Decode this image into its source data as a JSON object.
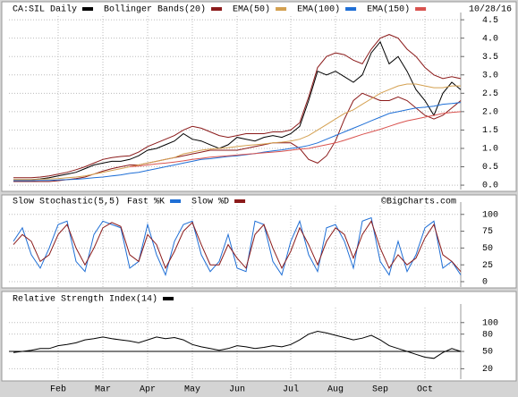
{
  "chart_data": [
    {
      "type": "line",
      "date": "10/28/16",
      "ylim": [
        -0.12,
        4.6
      ],
      "yticks": [
        {
          "value": 0,
          "label": "0.0"
        },
        0.5,
        {
          "value": 1,
          "label": "1.0"
        },
        1.5,
        {
          "value": 2,
          "label": "2.0"
        },
        2.5,
        {
          "value": 3,
          "label": "3.0"
        },
        3.5,
        {
          "value": 4,
          "label": "4.0"
        },
        4.5
      ],
      "grid": true,
      "series": [
        {
          "name": "CA:SIL Daily",
          "color": "#000000",
          "values": [
            0.15,
            0.15,
            0.15,
            0.17,
            0.2,
            0.25,
            0.3,
            0.35,
            0.45,
            0.55,
            0.6,
            0.65,
            0.65,
            0.7,
            0.8,
            0.95,
            1.0,
            1.1,
            1.2,
            1.4,
            1.25,
            1.2,
            1.1,
            1.0,
            1.1,
            1.3,
            1.25,
            1.2,
            1.3,
            1.35,
            1.3,
            1.4,
            1.6,
            2.3,
            3.1,
            3.0,
            3.1,
            2.95,
            2.8,
            3.0,
            3.6,
            3.9,
            3.3,
            3.5,
            3.1,
            2.6,
            2.3,
            1.9,
            2.5,
            2.8,
            2.6
          ]
        },
        {
          "name": "Bollinger Bands(20)",
          "color": "#8b1a1a",
          "values": [
            0.2,
            0.2,
            0.2,
            0.22,
            0.25,
            0.3,
            0.35,
            0.42,
            0.5,
            0.6,
            0.7,
            0.75,
            0.78,
            0.8,
            0.9,
            1.05,
            1.15,
            1.25,
            1.35,
            1.5,
            1.6,
            1.55,
            1.45,
            1.35,
            1.3,
            1.35,
            1.4,
            1.4,
            1.4,
            1.45,
            1.45,
            1.5,
            1.7,
            2.4,
            3.2,
            3.5,
            3.6,
            3.55,
            3.4,
            3.3,
            3.7,
            4.0,
            4.1,
            4.0,
            3.7,
            3.5,
            3.2,
            3.0,
            2.9,
            2.95,
            2.9
          ],
          "lower": [
            0.1,
            0.1,
            0.1,
            0.1,
            0.1,
            0.12,
            0.15,
            0.18,
            0.22,
            0.3,
            0.38,
            0.45,
            0.5,
            0.55,
            0.55,
            0.6,
            0.65,
            0.7,
            0.75,
            0.8,
            0.85,
            0.9,
            0.95,
            0.95,
            0.95,
            0.95,
            1.0,
            1.05,
            1.1,
            1.15,
            1.15,
            1.15,
            1.0,
            0.7,
            0.6,
            0.8,
            1.2,
            1.8,
            2.3,
            2.5,
            2.4,
            2.3,
            2.3,
            2.4,
            2.3,
            2.1,
            1.9,
            1.8,
            1.9,
            2.1,
            2.3
          ]
        },
        {
          "name": "EMA(50)",
          "color": "#d4a050",
          "values": [
            0.15,
            0.15,
            0.15,
            0.16,
            0.17,
            0.18,
            0.2,
            0.22,
            0.25,
            0.3,
            0.35,
            0.4,
            0.45,
            0.5,
            0.55,
            0.6,
            0.65,
            0.7,
            0.75,
            0.85,
            0.9,
            0.95,
            0.98,
            1.0,
            1.02,
            1.05,
            1.08,
            1.1,
            1.12,
            1.15,
            1.17,
            1.2,
            1.25,
            1.35,
            1.5,
            1.65,
            1.8,
            1.95,
            2.05,
            2.2,
            2.35,
            2.5,
            2.6,
            2.7,
            2.75,
            2.75,
            2.7,
            2.65,
            2.65,
            2.7,
            2.7
          ]
        },
        {
          "name": "EMA(100)",
          "color": "#1f6fd6",
          "values": [
            0.12,
            0.12,
            0.12,
            0.13,
            0.13,
            0.14,
            0.15,
            0.16,
            0.18,
            0.2,
            0.22,
            0.25,
            0.28,
            0.32,
            0.35,
            0.4,
            0.45,
            0.5,
            0.55,
            0.6,
            0.65,
            0.7,
            0.72,
            0.75,
            0.78,
            0.8,
            0.83,
            0.86,
            0.9,
            0.93,
            0.96,
            1.0,
            1.03,
            1.08,
            1.15,
            1.25,
            1.35,
            1.45,
            1.55,
            1.65,
            1.75,
            1.85,
            1.95,
            2.0,
            2.05,
            2.1,
            2.12,
            2.15,
            2.2,
            2.22,
            2.25
          ]
        },
        {
          "name": "EMA(150)",
          "color": "#d9534f",
          "values": [
            null,
            null,
            null,
            null,
            null,
            null,
            null,
            null,
            null,
            null,
            null,
            null,
            null,
            0.5,
            0.52,
            0.55,
            0.58,
            0.6,
            0.63,
            0.66,
            0.7,
            0.73,
            0.76,
            0.78,
            0.8,
            0.82,
            0.84,
            0.86,
            0.88,
            0.9,
            0.92,
            0.95,
            0.98,
            1.0,
            1.05,
            1.1,
            1.15,
            1.22,
            1.3,
            1.38,
            1.45,
            1.52,
            1.6,
            1.68,
            1.75,
            1.8,
            1.85,
            1.9,
            1.95,
            1.98,
            2.0
          ]
        }
      ]
    },
    {
      "type": "line",
      "title": "Slow Stochastic(5,5)",
      "credit": "©BigCharts.com",
      "ylim": [
        -8,
        113
      ],
      "yticks": [
        0,
        25,
        50,
        75,
        100
      ],
      "grid": true,
      "series": [
        {
          "name": "Fast %K",
          "color": "#1f6fd6",
          "values": [
            60,
            80,
            40,
            20,
            50,
            85,
            90,
            30,
            15,
            70,
            90,
            85,
            80,
            20,
            30,
            85,
            40,
            10,
            60,
            85,
            90,
            40,
            15,
            30,
            70,
            20,
            15,
            90,
            85,
            30,
            10,
            60,
            90,
            40,
            15,
            80,
            85,
            60,
            20,
            90,
            95,
            30,
            10,
            60,
            15,
            40,
            80,
            90,
            20,
            30,
            10
          ]
        },
        {
          "name": "Slow %D",
          "color": "#8b1a1a",
          "values": [
            55,
            70,
            60,
            30,
            40,
            70,
            85,
            50,
            25,
            50,
            80,
            88,
            82,
            40,
            30,
            70,
            55,
            20,
            45,
            75,
            88,
            55,
            25,
            25,
            55,
            35,
            20,
            70,
            85,
            50,
            20,
            45,
            80,
            55,
            25,
            60,
            80,
            70,
            35,
            70,
            90,
            50,
            20,
            40,
            25,
            35,
            65,
            85,
            40,
            30,
            15
          ]
        }
      ]
    },
    {
      "type": "line",
      "reference": 50,
      "ylim": [
        2,
        126
      ],
      "yticks": [
        20,
        50,
        80,
        100
      ],
      "grid": true,
      "categories": [
        null,
        null,
        null,
        null,
        null,
        "Feb",
        null,
        null,
        null,
        null,
        "Mar",
        null,
        null,
        null,
        null,
        "Apr",
        null,
        null,
        null,
        null,
        "May",
        null,
        null,
        null,
        null,
        "Jun",
        null,
        null,
        null,
        null,
        null,
        "Jul",
        null,
        null,
        null,
        null,
        "Aug",
        null,
        null,
        null,
        null,
        "Sep",
        null,
        null,
        null,
        null,
        "Oct",
        null,
        null,
        null,
        null
      ],
      "series": [
        {
          "name": "Relative Strength Index(14)",
          "color": "#000000",
          "values": [
            48,
            50,
            52,
            55,
            55,
            60,
            62,
            65,
            70,
            72,
            75,
            72,
            70,
            68,
            65,
            70,
            75,
            72,
            74,
            70,
            62,
            58,
            55,
            52,
            55,
            60,
            58,
            55,
            57,
            60,
            58,
            62,
            70,
            80,
            85,
            82,
            78,
            74,
            70,
            73,
            78,
            70,
            60,
            55,
            50,
            45,
            40,
            38,
            48,
            55,
            50
          ]
        }
      ]
    }
  ]
}
